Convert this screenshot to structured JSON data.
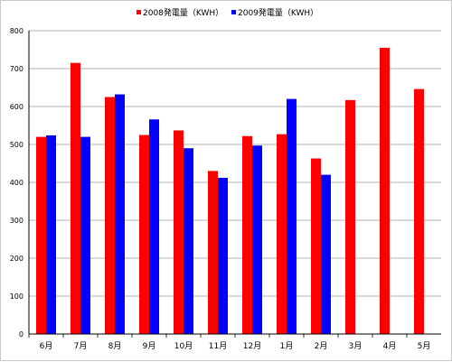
{
  "chart_data": {
    "type": "bar",
    "categories": [
      "6月",
      "7月",
      "8月",
      "9月",
      "10月",
      "11月",
      "12月",
      "1月",
      "2月",
      "3月",
      "4月",
      "5月"
    ],
    "series": [
      {
        "name": "2008発電量（KWH）",
        "color": "#ff0000",
        "values": [
          520,
          715,
          625,
          525,
          537,
          430,
          522,
          527,
          463,
          617,
          755,
          646
        ]
      },
      {
        "name": "2009発電量（KWH）",
        "color": "#0000ff",
        "values": [
          524,
          520,
          632,
          566,
          490,
          412,
          497,
          620,
          420,
          null,
          null,
          null
        ]
      }
    ],
    "ylim": [
      0,
      800
    ],
    "yticks": [
      0,
      100,
      200,
      300,
      400,
      500,
      600,
      700,
      800
    ],
    "grid": true,
    "legend": "top-center"
  }
}
